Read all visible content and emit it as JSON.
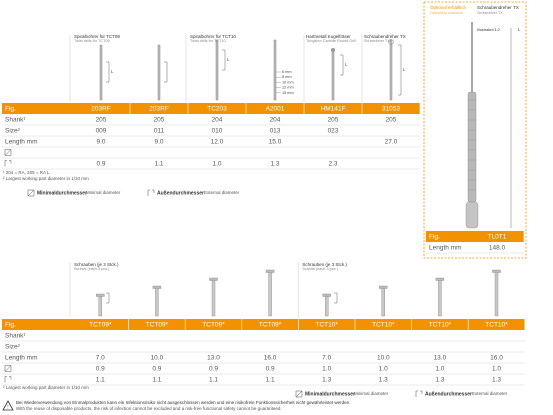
{
  "top": {
    "headers": [
      {
        "de": "Spiralbohrer für TCT09",
        "en": "Twist drills for TCT09"
      },
      {
        "de": "Spiralbohrer für TCT10",
        "en": "Twist drills for TCT10"
      },
      {
        "de": "Hartmetall Kugelfräser",
        "en": "Tungsten Carbide Round Drill"
      },
      {
        "de": "Schraubendreher TX",
        "en": "Screwdriver TX"
      }
    ],
    "lengths": [
      "6 mm",
      "8 mm",
      "10 mm",
      "12 mm",
      "15 mm"
    ],
    "dim_label": "L"
  },
  "table1": {
    "rows": [
      [
        "Fig.",
        "203RF",
        "203RF",
        "TC203",
        "A2001",
        "HM141F",
        "31053"
      ],
      [
        "Shank¹",
        "205",
        "205",
        "204",
        "204",
        "205",
        "205"
      ],
      [
        "Size²",
        "009",
        "011",
        "010",
        "013",
        "023",
        null
      ],
      [
        "Length mm",
        "9.0",
        "9.0",
        "12.0",
        "15.0",
        null,
        "27.0"
      ],
      [
        null,
        null,
        null,
        null,
        null,
        null,
        null
      ],
      [
        null,
        "0.9",
        "1.1",
        "1.0",
        "1.3",
        "2.3",
        null
      ]
    ],
    "footnotes": [
      "¹ 204 = RA, 205 = RA L",
      "² Largest working part diameter in 1/10 mm"
    ]
  },
  "legend": {
    "min_de": "Minimaldurchmesser",
    "min_en": "Minimal diameter",
    "outer_de": "Außendurchmesser",
    "outer_en": "External diameter"
  },
  "optional": {
    "title": "Optional erhältlich",
    "subtitle": "Optionally available",
    "tool_name": "Schraubendreher TX",
    "tool_name_en": "Screwdriver TX",
    "scale": "Illustrated 1:2",
    "dim_label": "L",
    "rows": [
      [
        "Fig.",
        "TL0T1"
      ],
      [
        "Length mm",
        "148.0"
      ]
    ]
  },
  "screws": {
    "headers": [
      {
        "de": "Schrauben (je 3 Stck.)",
        "en": "Screws (each 3 pcs.)"
      },
      {
        "de": "Schrauben (je 3 Stck.)",
        "en": "Screws (each 3 pcs.)"
      }
    ]
  },
  "table2": {
    "rows": [
      [
        "Fig.",
        "TCT09*",
        "TCT09*",
        "TCT09*",
        "TCT09*",
        "TCT10*",
        "TCT10*",
        "TCT10*",
        "TCT10*"
      ],
      [
        "Shank¹",
        null,
        null,
        null,
        null,
        null,
        null,
        null,
        null
      ],
      [
        "Size²",
        null,
        null,
        null,
        null,
        null,
        null,
        null,
        null
      ],
      [
        "Length mm",
        "7.0",
        "10.0",
        "13.0",
        "16.0",
        "7.0",
        "10.0",
        "13.0",
        "16.0"
      ],
      [
        null,
        "0.9",
        "0.9",
        "0.9",
        "0.9",
        "1.0",
        "1.0",
        "1.0",
        "1.0"
      ],
      [
        null,
        "1.1",
        "1.1",
        "1.1",
        "1.1",
        "1.3",
        "1.3",
        "1.3",
        "1.3"
      ]
    ],
    "footnotes": [
      "² Largest working part diameter in 1/10 mm"
    ]
  },
  "warning": {
    "de": "Bei Wiederverwendung von Einmalprodukten kann ein Infektionsrisiko nicht ausgeschlossen werden und eine risikofreie Funktionssicherheit nicht gewährleistet werden.",
    "en": "With the reuse of disposable products, the risk of infection cannot be excluded and a risk-free functional safety cannot be guaranteed."
  }
}
